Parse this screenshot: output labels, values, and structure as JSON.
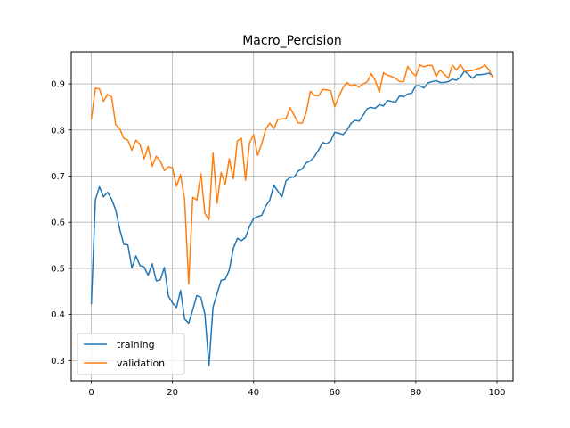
{
  "chart_data": {
    "type": "line",
    "title": "Macro_Percision",
    "xlabel": "",
    "ylabel": "",
    "xlim": [
      -4.95,
      103.95
    ],
    "ylim": [
      0.2562,
      0.9697
    ],
    "xticks": [
      0,
      20,
      40,
      60,
      80,
      100
    ],
    "yticks": [
      0.3,
      0.4,
      0.5,
      0.6,
      0.7,
      0.8,
      0.9
    ],
    "xtick_labels": [
      "0",
      "20",
      "40",
      "60",
      "80",
      "100"
    ],
    "ytick_labels": [
      "0.3",
      "0.4",
      "0.5",
      "0.6",
      "0.7",
      "0.8",
      "0.9"
    ],
    "grid": true,
    "legend_position": "lower-left",
    "series": [
      {
        "name": "training",
        "color": "#1f77b4",
        "values": [
          0.422,
          0.648,
          0.677,
          0.655,
          0.665,
          0.65,
          0.627,
          0.585,
          0.552,
          0.551,
          0.501,
          0.527,
          0.506,
          0.503,
          0.485,
          0.51,
          0.473,
          0.475,
          0.502,
          0.44,
          0.425,
          0.415,
          0.452,
          0.39,
          0.381,
          0.41,
          0.441,
          0.437,
          0.4,
          0.289,
          0.416,
          0.445,
          0.474,
          0.476,
          0.496,
          0.543,
          0.565,
          0.56,
          0.567,
          0.591,
          0.608,
          0.612,
          0.615,
          0.635,
          0.648,
          0.68,
          0.667,
          0.655,
          0.69,
          0.697,
          0.698,
          0.711,
          0.716,
          0.729,
          0.733,
          0.742,
          0.756,
          0.773,
          0.77,
          0.776,
          0.795,
          0.793,
          0.79,
          0.799,
          0.814,
          0.821,
          0.819,
          0.832,
          0.846,
          0.849,
          0.847,
          0.855,
          0.852,
          0.864,
          0.862,
          0.86,
          0.874,
          0.872,
          0.878,
          0.88,
          0.896,
          0.896,
          0.891,
          0.902,
          0.905,
          0.907,
          0.903,
          0.903,
          0.905,
          0.91,
          0.908,
          0.915,
          0.928,
          0.92,
          0.912,
          0.92,
          0.92,
          0.921,
          0.923,
          0.917
        ]
      },
      {
        "name": "validation",
        "color": "#ff7f0e",
        "values": [
          0.823,
          0.891,
          0.889,
          0.862,
          0.877,
          0.872,
          0.812,
          0.803,
          0.782,
          0.778,
          0.756,
          0.778,
          0.768,
          0.737,
          0.764,
          0.721,
          0.743,
          0.733,
          0.712,
          0.72,
          0.718,
          0.678,
          0.703,
          0.649,
          0.466,
          0.654,
          0.648,
          0.706,
          0.619,
          0.605,
          0.75,
          0.641,
          0.708,
          0.681,
          0.738,
          0.694,
          0.776,
          0.782,
          0.691,
          0.772,
          0.79,
          0.745,
          0.77,
          0.802,
          0.815,
          0.803,
          0.823,
          0.824,
          0.825,
          0.848,
          0.832,
          0.815,
          0.815,
          0.839,
          0.884,
          0.875,
          0.874,
          0.888,
          0.887,
          0.885,
          0.85,
          0.872,
          0.891,
          0.903,
          0.896,
          0.898,
          0.893,
          0.9,
          0.904,
          0.922,
          0.907,
          0.882,
          0.924,
          0.919,
          0.916,
          0.912,
          0.905,
          0.905,
          0.938,
          0.925,
          0.917,
          0.941,
          0.937,
          0.94,
          0.94,
          0.916,
          0.93,
          0.921,
          0.912,
          0.941,
          0.93,
          0.942,
          0.928,
          0.928,
          0.929,
          0.932,
          0.935,
          0.941,
          0.931,
          0.913
        ]
      }
    ]
  }
}
